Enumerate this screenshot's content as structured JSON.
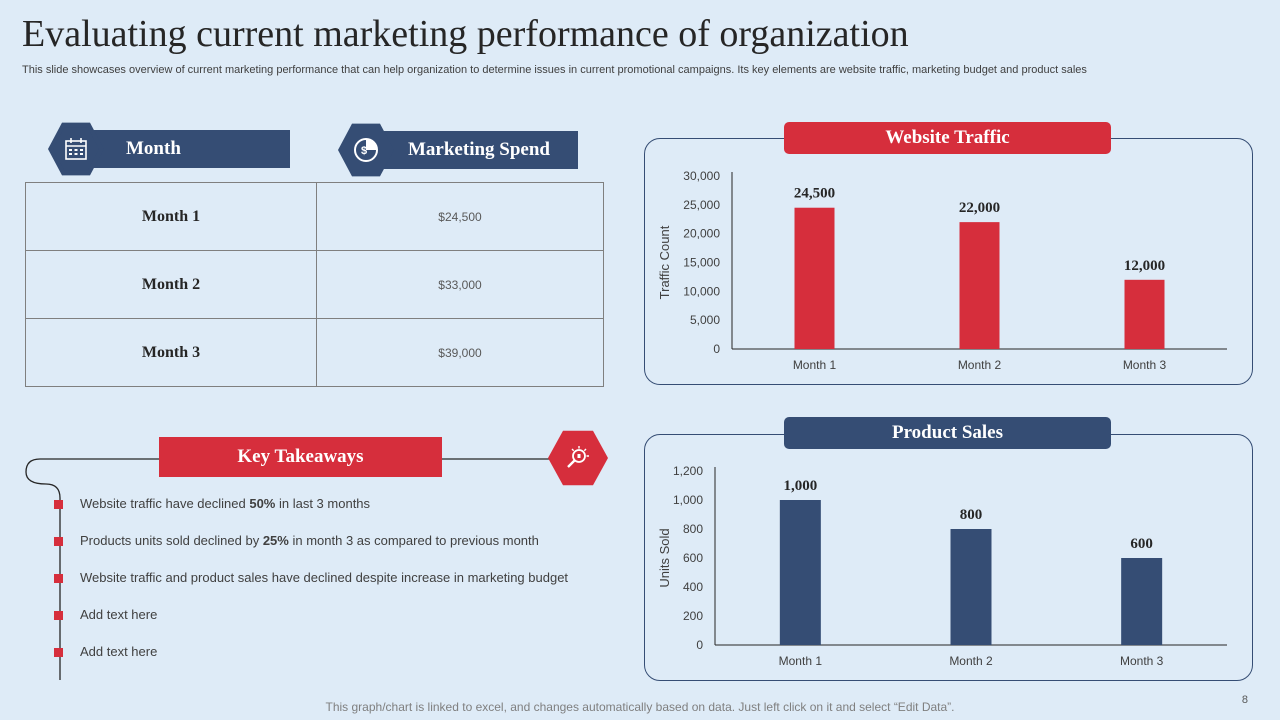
{
  "title": "Evaluating current marketing performance of organization",
  "subtitle": "This slide showcases overview of current marketing performance that can help organization to determine issues in current promotional campaigns. Its key elements are website traffic, marketing budget and product sales",
  "spend_table": {
    "col1_header": "Month",
    "col2_header": "Marketing Spend",
    "rows": [
      {
        "month": "Month 1",
        "spend": "$24,500"
      },
      {
        "month": "Month 2",
        "spend": "$33,000"
      },
      {
        "month": "Month 3",
        "spend": "$39,000"
      }
    ]
  },
  "takeaways": {
    "title": "Key Takeaways",
    "items": [
      {
        "pre": "Website traffic have  declined ",
        "bold": "50%",
        "post": " in last 3 months"
      },
      {
        "pre": "Products units sold declined by ",
        "bold": "25%",
        "post": " in month 3 as compared to previous  month"
      },
      {
        "pre": "Website traffic and product sales have declined despite increase in marketing budget",
        "bold": "",
        "post": ""
      },
      {
        "pre": "Add text here",
        "bold": "",
        "post": ""
      },
      {
        "pre": "Add text here",
        "bold": "",
        "post": ""
      }
    ]
  },
  "chart_data": [
    {
      "type": "bar",
      "title": "Website Traffic",
      "categories": [
        "Month 1",
        "Month 2",
        "Month 3"
      ],
      "values": [
        24500,
        22000,
        12000
      ],
      "data_labels": [
        "24,500",
        "22,000",
        "12,000"
      ],
      "ylabel": "Traffic Count",
      "xlabel": "",
      "ylim": [
        0,
        30000
      ],
      "yticks": [
        0,
        5000,
        10000,
        15000,
        20000,
        25000,
        30000
      ],
      "ytick_labels": [
        "0",
        "5,000",
        "10,000",
        "15,000",
        "20,000",
        "25,000",
        "30,000"
      ],
      "color": "#d62e3c",
      "header_color": "#d62e3c"
    },
    {
      "type": "bar",
      "title": "Product Sales",
      "categories": [
        "Month 1",
        "Month 2",
        "Month 3"
      ],
      "values": [
        1000,
        800,
        600
      ],
      "data_labels": [
        "1,000",
        "800",
        "600"
      ],
      "ylabel": "Units Sold",
      "xlabel": "",
      "ylim": [
        0,
        1200
      ],
      "yticks": [
        0,
        200,
        400,
        600,
        800,
        1000,
        1200
      ],
      "ytick_labels": [
        "0",
        "200",
        "400",
        "600",
        "800",
        "1,000",
        "1,200"
      ],
      "color": "#354d74",
      "header_color": "#354d74"
    }
  ],
  "footer": "This graph/chart is linked to excel, and changes automatically based on data. Just left click on it and select “Edit Data”.",
  "page_number": "8",
  "colors": {
    "accent_red": "#d62e3c",
    "accent_blue": "#354d74",
    "background": "#deebf7"
  },
  "icons": {
    "month": "calendar-icon",
    "spend": "money-pie-icon",
    "takeaways": "idea-search-icon"
  }
}
